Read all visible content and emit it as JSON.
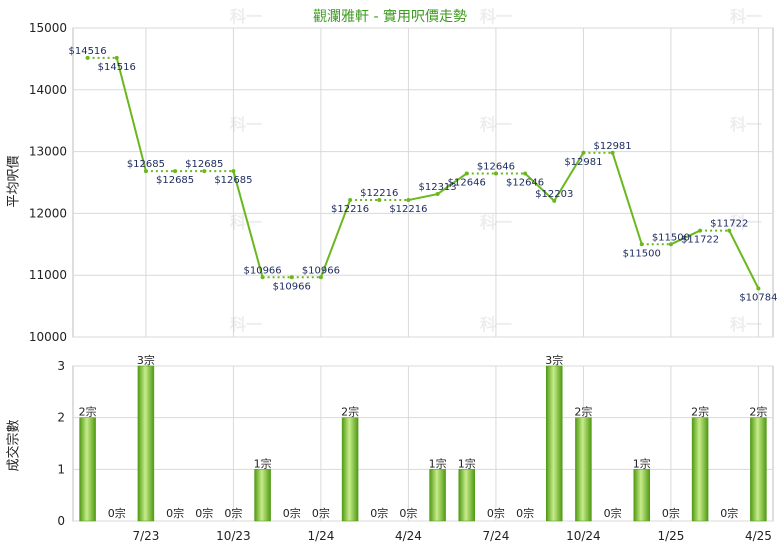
{
  "chart_data": [
    {
      "type": "line",
      "title": "觀瀾雅軒 - 實用呎價走勢",
      "ylabel": "平均呎價",
      "ylim": [
        10000,
        15000
      ],
      "yticks": [
        10000,
        11000,
        12000,
        13000,
        14000,
        15000
      ],
      "grid": true,
      "series": [
        {
          "values": [
            14516,
            14516,
            12685,
            12685,
            12685,
            12685,
            10966,
            10966,
            10966,
            12216,
            12216,
            12216,
            12313,
            12646,
            12646,
            12646,
            12203,
            12981,
            12981,
            11500,
            11500,
            11722,
            11722,
            10784
          ],
          "point_labels": [
            "$14516",
            "$14516",
            "$12685",
            "$12685",
            "$12685",
            "$12685",
            "$10966",
            "$10966",
            "$10966",
            "$12216",
            "$12216",
            "$12216",
            "$12313",
            "$12646",
            "$12646",
            "$12646",
            "$12203",
            "$12981",
            "$12981",
            "$11500",
            "$11500",
            "$11722",
            "$11722",
            "$10784"
          ],
          "shown_labels": [
            1,
            1,
            1,
            1,
            1,
            1,
            1,
            1,
            1,
            1,
            1,
            1,
            1,
            1,
            1,
            1,
            1,
            1,
            1,
            1,
            1,
            1,
            1,
            1
          ],
          "color": "#6ab81e"
        }
      ]
    },
    {
      "type": "bar",
      "ylabel": "成交宗數",
      "ylim": [
        0,
        3
      ],
      "yticks": [
        0,
        1,
        2,
        3
      ],
      "grid": true,
      "x_tick_labels": [
        "7/23",
        "10/23",
        "1/24",
        "4/24",
        "7/24",
        "10/24",
        "1/25",
        "4/25"
      ],
      "values": [
        2,
        0,
        3,
        0,
        0,
        0,
        1,
        0,
        0,
        2,
        0,
        0,
        1,
        1,
        0,
        0,
        3,
        2,
        0,
        1,
        0,
        2,
        0,
        2
      ],
      "value_labels": [
        "2宗",
        "0宗",
        "3宗",
        "0宗",
        "0宗",
        "0宗",
        "1宗",
        "0宗",
        "0宗",
        "2宗",
        "0宗",
        "0宗",
        "1宗",
        "1宗",
        "0宗",
        "0宗",
        "3宗",
        "2宗",
        "0宗",
        "1宗",
        "0宗",
        "2宗",
        "0宗",
        "2宗"
      ],
      "color": "#6ab81e"
    }
  ],
  "colors": {
    "line": "#6ab81e",
    "bar_dark": "#4f9a12",
    "bar_light": "#c8ec8c",
    "title": "#3c9a1e",
    "grid": "#d9d9d9",
    "label": "#1c2a5e"
  },
  "watermark": "科一"
}
